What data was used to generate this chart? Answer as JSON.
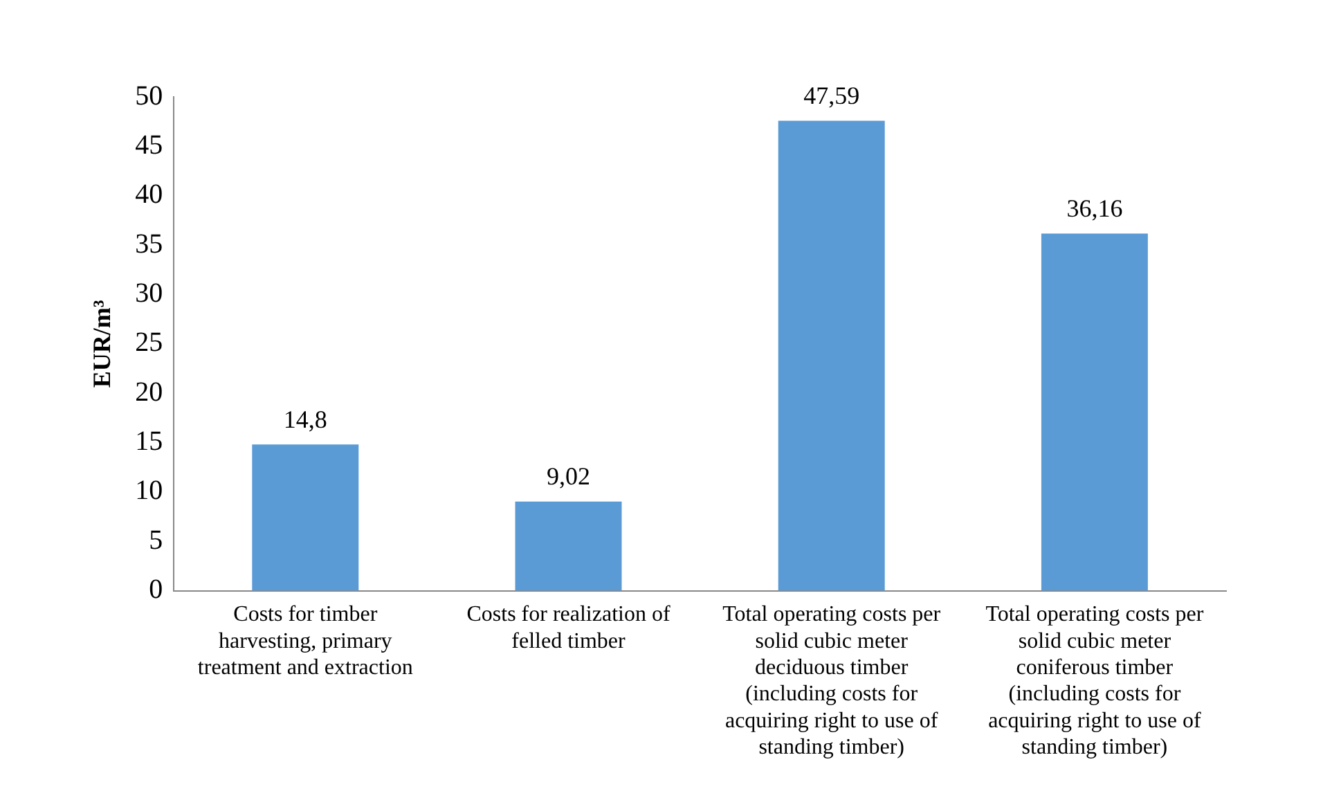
{
  "chart_data": {
    "type": "bar",
    "ylabel": "EUR/m³",
    "categories": [
      "Costs for timber harvesting, primary treatment and extraction",
      "Costs for realization of felled timber",
      "Total operating costs per solid cubic meter deciduous timber (including costs for acquiring right to use of standing timber)",
      "Total operating costs per solid cubic meter coniferous timber (including costs for acquiring right to use of standing timber)"
    ],
    "values": [
      14.8,
      9.02,
      47.59,
      36.16
    ],
    "value_labels": [
      "14,8",
      "9,02",
      "47,59",
      "36,16"
    ],
    "color": "#5b9bd5",
    "ylim": [
      0,
      50
    ],
    "yticks": [
      0,
      5,
      10,
      15,
      20,
      25,
      30,
      35,
      40,
      45,
      50
    ],
    "grid": false,
    "legend": false
  }
}
